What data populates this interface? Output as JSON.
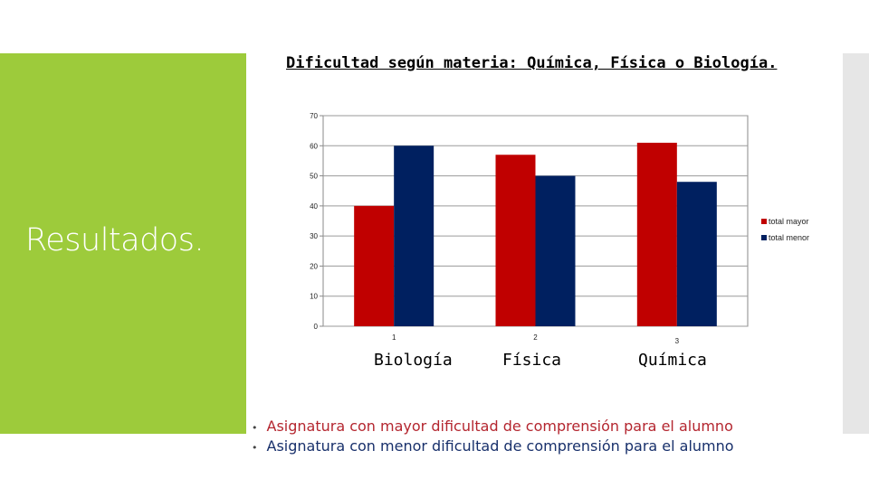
{
  "slide": {
    "side_title": "Resultados.",
    "colors": {
      "panel": "#9dcb3b",
      "strip": "#e6e6e6"
    }
  },
  "chart_data": {
    "type": "bar",
    "title": "Dificultad según materia: Química, Física o Biología.",
    "categories": [
      "1",
      "2",
      "3"
    ],
    "category_names": [
      "Biología",
      "Física",
      "Química"
    ],
    "series": [
      {
        "name": "total mayor",
        "color": "#c00000",
        "values": [
          40,
          57,
          61
        ]
      },
      {
        "name": "total menor",
        "color": "#002060",
        "values": [
          60,
          50,
          48
        ]
      }
    ],
    "ylim": [
      0,
      70
    ],
    "yticks": [
      0,
      10,
      20,
      30,
      40,
      50,
      60,
      70
    ],
    "grid": true,
    "legend": "right"
  },
  "bullets": [
    "Asignatura con mayor dificultad de comprensión para el alumno",
    "Asignatura con menor dificultad de comprensión para el alumno"
  ]
}
